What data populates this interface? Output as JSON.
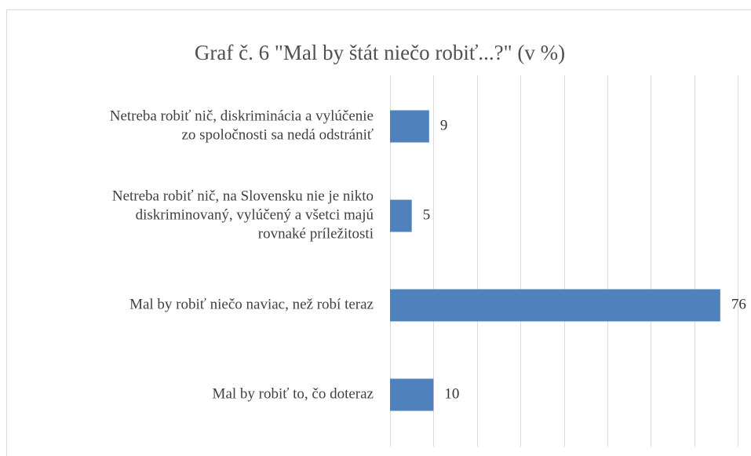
{
  "chart_data": {
    "type": "bar",
    "orientation": "horizontal",
    "title": "Graf č. 6 \"Mal by štát niečo robiť...?\"  (v %)",
    "categories": [
      [
        "Netreba robiť nič, diskriminácia a vylúčenie",
        "zo spoločnosti sa nedá odstrániť"
      ],
      [
        "Netreba robiť nič, na Slovensku nie je nikto",
        "diskriminovaný, vylúčený a všetci majú",
        "rovnaké príležitosti"
      ],
      [
        "Mal by robiť niečo naviac, než robí teraz"
      ],
      [
        "Mal by robiť to, čo doteraz"
      ]
    ],
    "values": [
      9,
      5,
      76,
      10
    ],
    "color": "#4f81bd",
    "xlim": [
      0,
      80
    ],
    "xticks": [
      0,
      10,
      20,
      30,
      40,
      50,
      60,
      70,
      80
    ],
    "grid": true
  }
}
